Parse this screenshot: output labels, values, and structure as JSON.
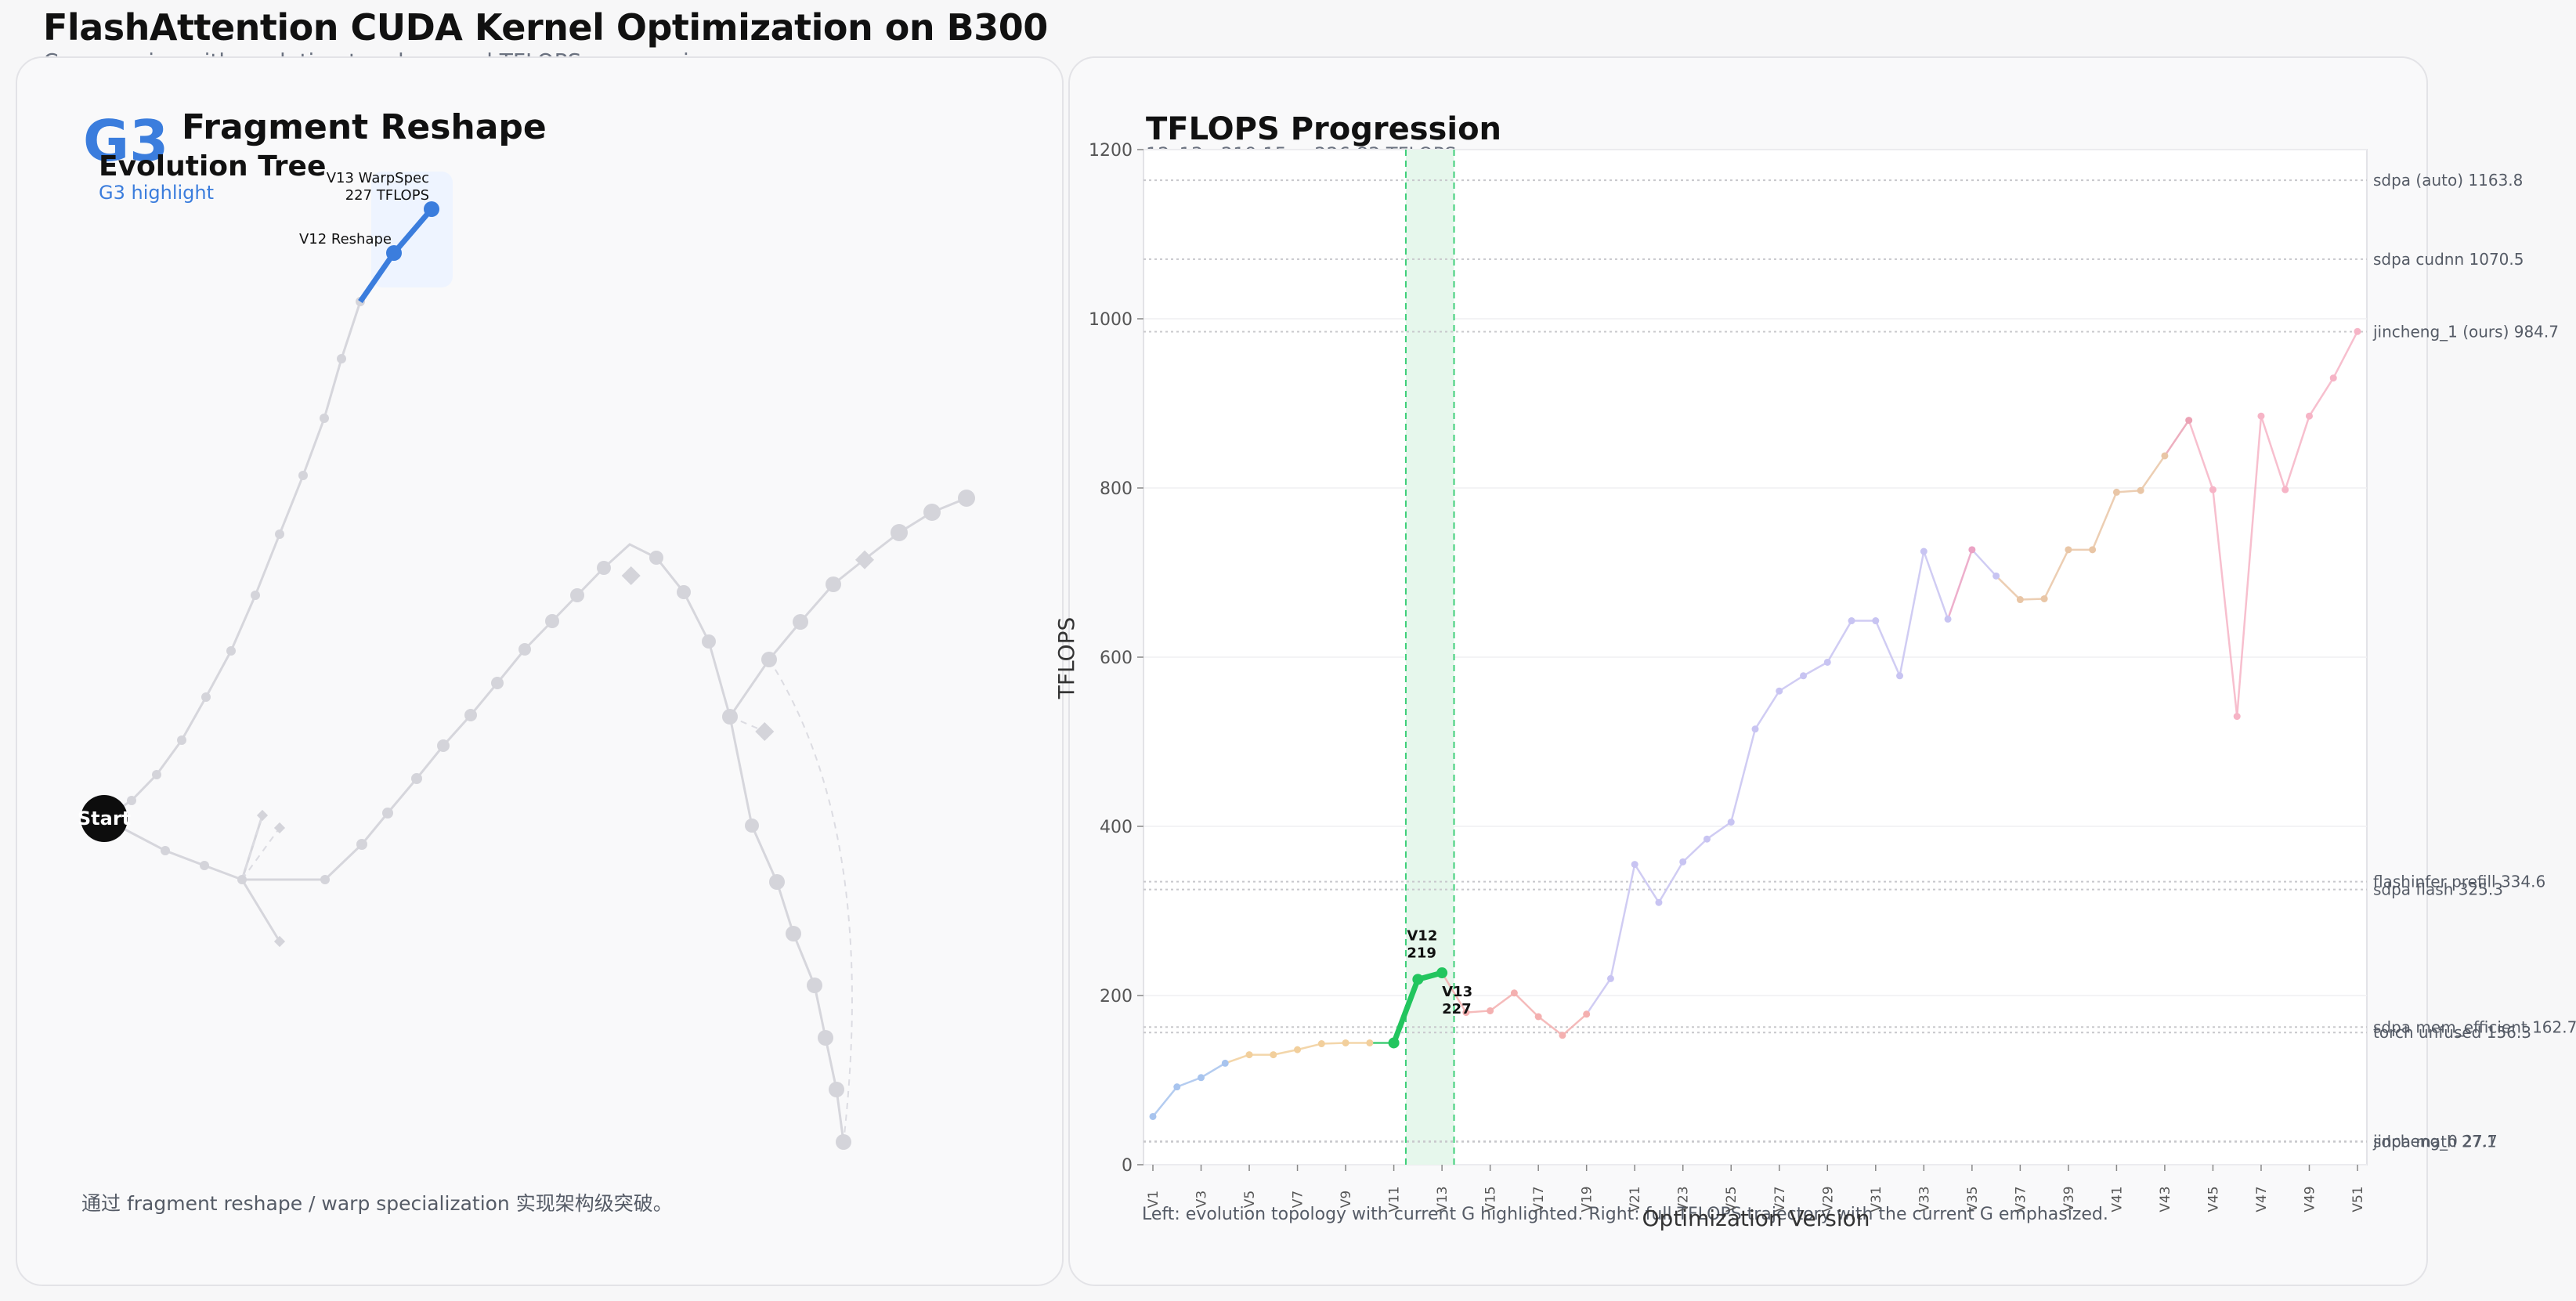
{
  "header": {
    "title": "FlashAttention CUDA Kernel Optimization on B300",
    "subtitle": "Cover series with evolution topology and TFLOPS progression"
  },
  "left_panel": {
    "group_tag": "G3",
    "group_name": "Fragment Reshape",
    "tree_title": "Evolution Tree",
    "tree_subtitle": "G3 highlight",
    "start_label": "Start",
    "v12_label": "V12 Reshape",
    "v13_label_line1": "V13 WarpSpec",
    "v13_label_line2": "227 TFLOPS",
    "caption": "通过 fragment reshape / warp specialization 实现架构级突破。"
  },
  "right_panel": {
    "title": "TFLOPS Progression",
    "range_subtitle": "12–13  ·  219.15 → 226.83 TFLOPS",
    "footnote": "Left: evolution topology with current G highlighted. Right: full TFLOPS trajectory with the current G emphasized."
  },
  "colors": {
    "highlight_blue": "#3b7ddd",
    "highlight_green": "#22c55e",
    "band_fill": "#e6f7ec",
    "dim_node": "#d4d4da",
    "reference_line": "#c8c8cc"
  },
  "chart_data": {
    "type": "line",
    "title": "TFLOPS Progression",
    "xlabel": "Optimization Version",
    "ylabel": "TFLOPS",
    "ylim": [
      0,
      1200
    ],
    "yticks": [
      0,
      200,
      400,
      600,
      800,
      1000,
      1200
    ],
    "xlim": [
      1,
      51
    ],
    "tick_labels": [
      "V1",
      "V3",
      "V5",
      "V7",
      "V9",
      "V11",
      "V13",
      "V15",
      "V17",
      "V19",
      "V21",
      "V23",
      "V25",
      "V27",
      "V29",
      "V31",
      "V33",
      "V35",
      "V37",
      "V39",
      "V41",
      "V43",
      "V45",
      "V47",
      "V49",
      "V51"
    ],
    "highlight_range": [
      12,
      13
    ],
    "highlight_labels": [
      {
        "text_line1": "V12",
        "text_line2": "219",
        "x": 12,
        "y": 219.15
      },
      {
        "text_line1": "V13",
        "text_line2": "227",
        "x": 13,
        "y": 226.83
      }
    ],
    "series": [
      {
        "x": [
          1,
          2,
          3,
          4,
          5,
          6,
          7,
          8,
          9,
          10,
          11,
          12,
          13,
          14,
          15,
          16,
          17,
          18,
          19,
          20,
          21,
          22,
          23,
          24,
          25,
          26,
          27,
          28,
          29,
          30,
          31,
          32,
          33,
          34,
          35,
          36,
          37,
          38,
          39,
          40,
          41,
          42,
          43,
          44,
          45,
          46,
          47,
          48,
          49,
          50,
          51
        ],
        "values": [
          57,
          92,
          103,
          120,
          130,
          130,
          136,
          143,
          144,
          144,
          144,
          219.15,
          226.83,
          180,
          182,
          203,
          175,
          153,
          178,
          220,
          355,
          310,
          358,
          385,
          405,
          515,
          560,
          578,
          594,
          643,
          643,
          578,
          725,
          645,
          727,
          696,
          668,
          669,
          727,
          727,
          795,
          797,
          838,
          880,
          798,
          530,
          885,
          798,
          885,
          930,
          985
        ],
        "colors": [
          "#a8c4ee",
          "#a8c4ee",
          "#a8c4ee",
          "#a8c4ee",
          "#f2cf9c",
          "#f2cf9c",
          "#f2cf9c",
          "#f2cf9c",
          "#f2cf9c",
          "#f2cf9c",
          "#22c55e",
          "#22c55e",
          "#22c55e",
          "#f4b0b0",
          "#f4b0b0",
          "#f4b0b0",
          "#f4b0b0",
          "#f4b0b0",
          "#f4b0b0",
          "#c8c4f2",
          "#c8c4f2",
          "#c8c4f2",
          "#c8c4f2",
          "#c8c4f2",
          "#c8c4f2",
          "#c8c4f2",
          "#c8c4f2",
          "#c8c4f2",
          "#c8c4f2",
          "#c8c4f2",
          "#c8c4f2",
          "#c8c4f2",
          "#c8c4f2",
          "#c8c4f2",
          "#eba2c4",
          "#c8c4f2",
          "#e9c6a6",
          "#e9c6a6",
          "#e9c6a6",
          "#e9c6a6",
          "#e9c6a6",
          "#e9c6a6",
          "#e9c6a6",
          "#eba2b4",
          "#f6b4c6",
          "#f6b4c6",
          "#f6b4c6",
          "#f6b4c6",
          "#f6b4c6",
          "#f6b4c6",
          "#f6b4c6"
        ]
      }
    ],
    "reference_lines": [
      {
        "label": "sdpa (auto)  1163.8",
        "value": 1163.8
      },
      {
        "label": "sdpa cudnn  1070.5",
        "value": 1070.5
      },
      {
        "label": "jincheng_1 (ours)  984.7",
        "value": 984.7
      },
      {
        "label": "flashinfer prefill  334.6",
        "value": 334.6
      },
      {
        "label": "sdpa flash  325.3",
        "value": 325.3
      },
      {
        "label": "sdpa mem_efficient  162.7",
        "value": 162.7
      },
      {
        "label": "torch unfused  156.3",
        "value": 156.3
      },
      {
        "label": "jincheng_0  27.7",
        "value": 27.7
      },
      {
        "label": "sdpa math  27.1",
        "value": 27.1
      }
    ],
    "grid": true,
    "legend": "none"
  }
}
